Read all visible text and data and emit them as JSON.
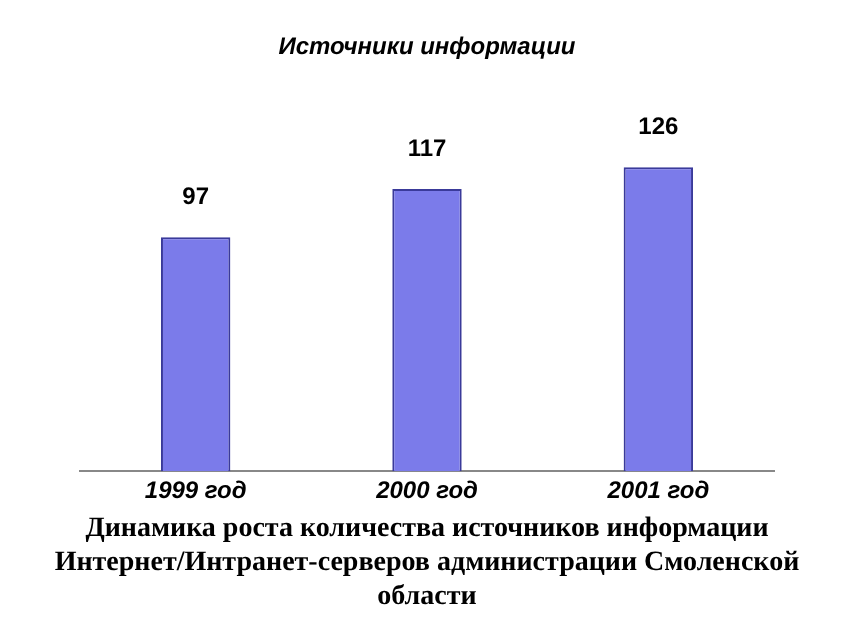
{
  "chart_data": {
    "type": "bar",
    "title": "Источники информации",
    "categories": [
      "1999 год",
      "2000 год",
      "2001 год"
    ],
    "values": [
      97,
      117,
      126
    ],
    "color": "#7b7bea",
    "data_labels": true,
    "grid": false,
    "legend": false,
    "annotations": [
      "Динамика роста количества источников информации Интернет/Интранет-серверов администрации Смоленской области"
    ]
  }
}
